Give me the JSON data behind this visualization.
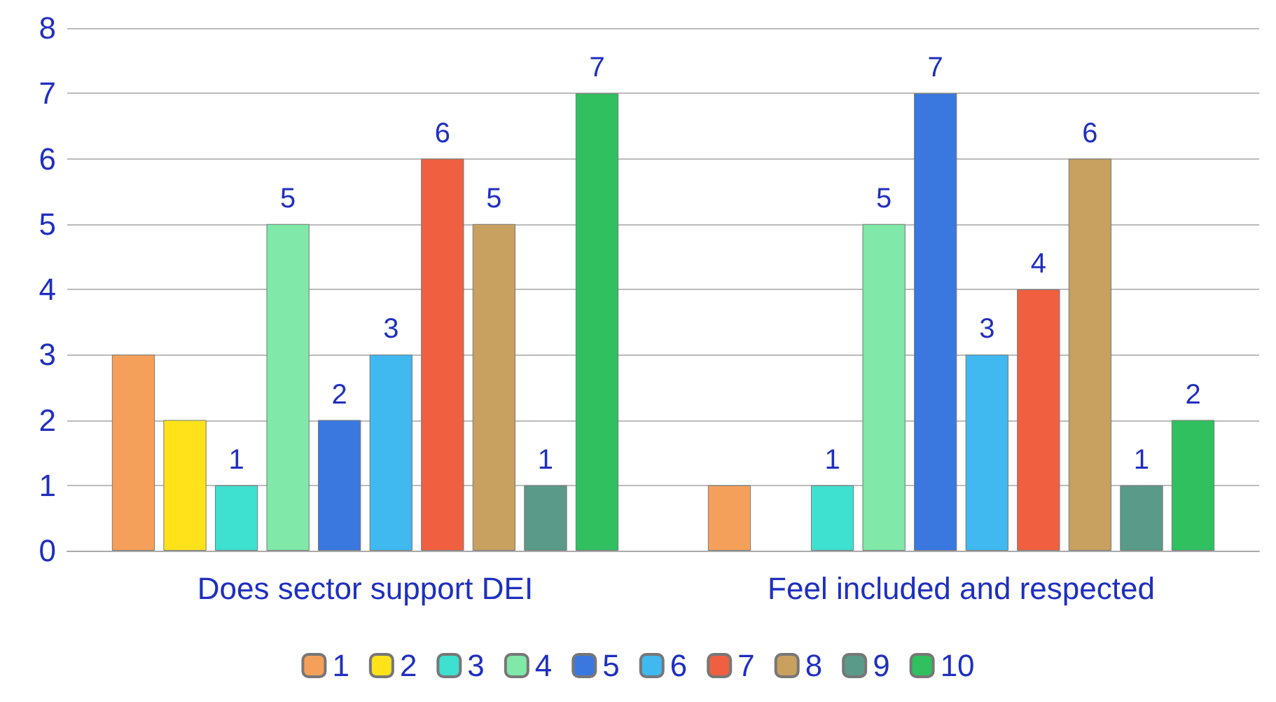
{
  "chart_data": {
    "type": "bar",
    "categories": [
      "Does sector support DEI",
      "Feel included and respected"
    ],
    "series": [
      {
        "name": "1",
        "color": "#f5a05a",
        "values": [
          3,
          1
        ],
        "value_labels": [
          null,
          null
        ]
      },
      {
        "name": "2",
        "color": "#ffe21a",
        "values": [
          2,
          null
        ],
        "value_labels": [
          null,
          null
        ]
      },
      {
        "name": "3",
        "color": "#3ee0d0",
        "values": [
          1,
          1
        ],
        "value_labels": [
          "1",
          "1"
        ]
      },
      {
        "name": "4",
        "color": "#80e8a8",
        "values": [
          5,
          5
        ],
        "value_labels": [
          "5",
          "5"
        ]
      },
      {
        "name": "5",
        "color": "#3a78e0",
        "values": [
          2,
          7
        ],
        "value_labels": [
          "2",
          "7"
        ]
      },
      {
        "name": "6",
        "color": "#40b8f0",
        "values": [
          3,
          3
        ],
        "value_labels": [
          "3",
          "3"
        ]
      },
      {
        "name": "7",
        "color": "#f06040",
        "values": [
          6,
          4
        ],
        "value_labels": [
          "6",
          "4"
        ]
      },
      {
        "name": "8",
        "color": "#c8a060",
        "values": [
          5,
          6
        ],
        "value_labels": [
          "5",
          "6"
        ]
      },
      {
        "name": "9",
        "color": "#5a9a88",
        "values": [
          1,
          1
        ],
        "value_labels": [
          "1",
          "1"
        ]
      },
      {
        "name": "10",
        "color": "#30c060",
        "values": [
          7,
          2
        ],
        "value_labels": [
          "7",
          "2"
        ]
      }
    ],
    "ylim": [
      0,
      8
    ],
    "yticks": [
      0,
      1,
      2,
      3,
      4,
      5,
      6,
      7,
      8
    ],
    "grid": "y",
    "legend": "bottom"
  }
}
